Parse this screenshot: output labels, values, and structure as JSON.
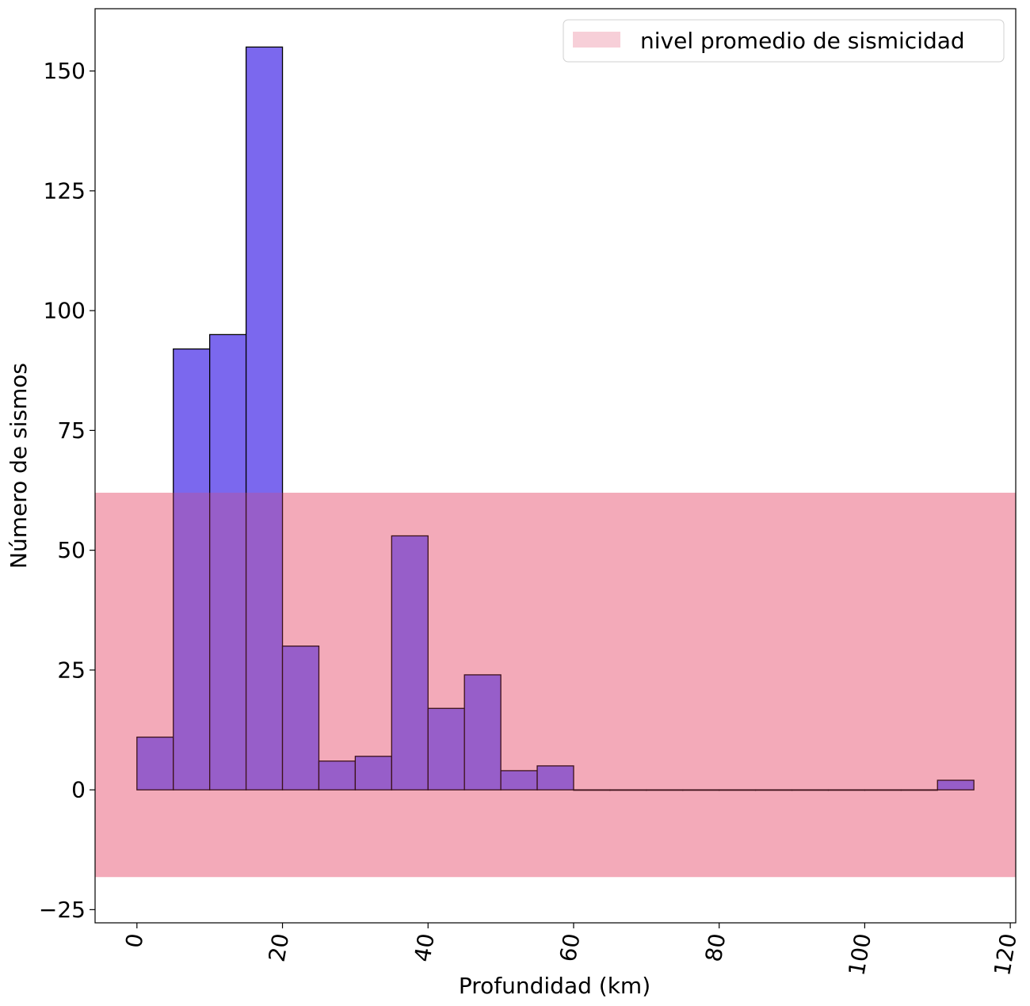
{
  "chart_data": {
    "type": "bar",
    "subtype": "histogram",
    "title": "",
    "xlabel": "Profundidad (km)",
    "ylabel": "Número de sismos",
    "xlim": [
      -5.75,
      120.75
    ],
    "ylim": [
      -27.75,
      163.0
    ],
    "x_ticks": [
      0,
      20,
      40,
      60,
      80,
      100,
      120
    ],
    "x_tick_labels": [
      "0",
      "20",
      "40",
      "60",
      "80",
      "100",
      "120"
    ],
    "x_tick_rotation_deg": -80,
    "y_ticks": [
      -25,
      0,
      25,
      50,
      75,
      100,
      125,
      150
    ],
    "y_tick_labels": [
      "−25",
      "0",
      "25",
      "50",
      "75",
      "100",
      "125",
      "150"
    ],
    "bin_edges": [
      0,
      5,
      10,
      15,
      20,
      25,
      30,
      35,
      40,
      45,
      50,
      55,
      60,
      65,
      70,
      75,
      80,
      85,
      90,
      95,
      100,
      105,
      110,
      115
    ],
    "values": [
      11,
      92,
      95,
      155,
      30,
      6,
      7,
      53,
      17,
      24,
      4,
      5,
      0,
      0,
      0,
      0,
      0,
      0,
      0,
      0,
      0,
      0,
      2
    ],
    "bar_color": "#7B68EE",
    "bar_edge_color": "#000000",
    "band": {
      "label": "nivel promedio de sismicidad",
      "y_range": [
        -18.2,
        62
      ],
      "color": "#F7CFD8"
    },
    "legend": {
      "position": "top-right",
      "entries": [
        "nivel promedio de sismicidad"
      ]
    },
    "grid": false
  }
}
